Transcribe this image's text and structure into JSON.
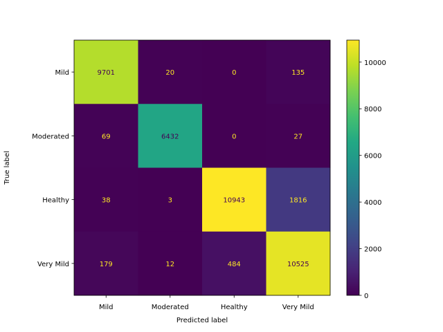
{
  "chart_data": {
    "type": "heatmap",
    "title": "",
    "xlabel": "Predicted label",
    "ylabel": "True label",
    "x_categories": [
      "Mild",
      "Moderated",
      "Healthy",
      "Very Mild"
    ],
    "y_categories": [
      "Mild",
      "Moderated",
      "Healthy",
      "Very Mild"
    ],
    "values": [
      [
        9701,
        20,
        0,
        135
      ],
      [
        69,
        6432,
        0,
        27
      ],
      [
        38,
        3,
        10943,
        1816
      ],
      [
        179,
        12,
        484,
        10525
      ]
    ],
    "colormap": "viridis",
    "colorbar": {
      "range": [
        0,
        10943
      ],
      "ticks": [
        0,
        2000,
        4000,
        6000,
        8000,
        10000
      ]
    },
    "text_color_low": "#fde725",
    "text_color_high": "#440154"
  }
}
